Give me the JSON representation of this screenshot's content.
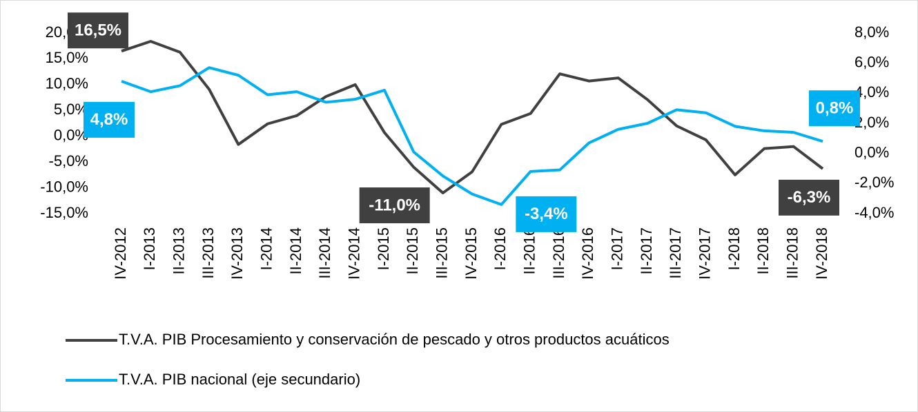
{
  "chart_data": {
    "type": "line",
    "categories": [
      "IV-2012",
      "I-2013",
      "II-2013",
      "III-2013",
      "IV-2013",
      "I-2014",
      "II-2014",
      "III-2014",
      "IV-2014",
      "I-2015",
      "II-2015",
      "III-2015",
      "IV-2015",
      "I-2016",
      "II-2016",
      "III-2016",
      "IV-2016",
      "I-2017",
      "II-2017",
      "III-2017",
      "IV-2017",
      "I-2018",
      "II-2018",
      "III-2018",
      "IV-2018"
    ],
    "series": [
      {
        "name": "T.V.A. PIB Procesamiento y conservación de pescado y otros productos acuáticos",
        "color": "#404040",
        "axis": "y",
        "values": [
          16.5,
          18.4,
          16.3,
          9.1,
          -1.6,
          2.4,
          4.0,
          7.7,
          10.0,
          0.7,
          -6.0,
          -11.0,
          -6.9,
          2.3,
          4.4,
          12.1,
          10.7,
          11.3,
          7.1,
          2.0,
          -0.7,
          -7.5,
          -2.4,
          -2.0,
          -6.3
        ],
        "value_labels": [
          "16,5%",
          null,
          null,
          null,
          null,
          null,
          null,
          null,
          null,
          null,
          null,
          "-11,0%",
          null,
          null,
          null,
          null,
          null,
          null,
          null,
          null,
          null,
          null,
          null,
          null,
          "-6,3%"
        ]
      },
      {
        "name": "T.V.A. PIB nacional (eje secundario)",
        "color": "#00b0f0",
        "axis": "y2",
        "values": [
          4.8,
          4.1,
          4.5,
          5.7,
          5.2,
          3.9,
          4.1,
          3.4,
          3.6,
          4.2,
          0.1,
          -1.5,
          -2.7,
          -3.4,
          -1.2,
          -1.1,
          0.7,
          1.6,
          2.0,
          2.9,
          2.7,
          1.8,
          1.5,
          1.4,
          0.8
        ],
        "value_labels": [
          "4,8%",
          null,
          null,
          null,
          null,
          null,
          null,
          null,
          null,
          null,
          null,
          null,
          null,
          "-3,4%",
          null,
          null,
          null,
          null,
          null,
          null,
          null,
          null,
          null,
          null,
          "0,8%"
        ]
      }
    ],
    "ylim": [
      -15,
      20
    ],
    "yticks": [
      {
        "value": -15,
        "label": "-15,0%"
      },
      {
        "value": -10,
        "label": "-10,0%"
      },
      {
        "value": -5,
        "label": "-5,0%"
      },
      {
        "value": 0,
        "label": "0,0%"
      },
      {
        "value": 5,
        "label": "5,0%"
      },
      {
        "value": 10,
        "label": "10,0%"
      },
      {
        "value": 15,
        "label": "15,0%"
      },
      {
        "value": 20,
        "label": "20,0%"
      }
    ],
    "y2lim": [
      -4,
      8
    ],
    "y2ticks": [
      {
        "value": -4,
        "label": "-4,0%"
      },
      {
        "value": -2,
        "label": "-2,0%"
      },
      {
        "value": 0,
        "label": "0,0%"
      },
      {
        "value": 2,
        "label": "2,0%"
      },
      {
        "value": 4,
        "label": "4,0%"
      },
      {
        "value": 6,
        "label": "6,0%"
      },
      {
        "value": 8,
        "label": "8,0%"
      }
    ],
    "grid": false,
    "legend": "bottom"
  }
}
